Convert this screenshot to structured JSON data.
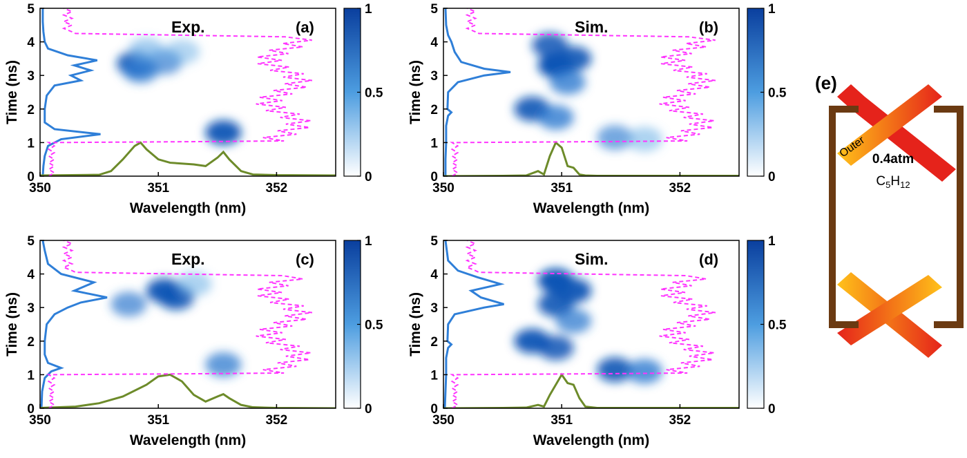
{
  "chart_data": [
    {
      "type": "heatmap",
      "panel_label": "(a)",
      "title": "Exp.",
      "xlabel": "Wavelength (nm)",
      "ylabel": "Time (ns)",
      "xlim": [
        350,
        352.5
      ],
      "ylim": [
        0,
        5
      ],
      "x_ticks": [
        "350",
        "351",
        "352"
      ],
      "y_ticks": [
        "0",
        "1",
        "2",
        "3",
        "4",
        "5"
      ],
      "colorbar": {
        "range": [
          0,
          1
        ],
        "ticks": [
          "0",
          "0.5",
          "1"
        ]
      },
      "blobs": [
        {
          "x": 350.8,
          "y": 3.35,
          "intensity": 0.8
        },
        {
          "x": 350.85,
          "y": 3.15,
          "intensity": 0.7
        },
        {
          "x": 351.05,
          "y": 3.4,
          "intensity": 0.6
        },
        {
          "x": 350.9,
          "y": 3.75,
          "intensity": 0.5
        },
        {
          "x": 351.2,
          "y": 3.7,
          "intensity": 0.4
        },
        {
          "x": 351.55,
          "y": 1.3,
          "intensity": 0.85
        }
      ],
      "series": [
        {
          "type": "temporal-profile",
          "style": "blue-solid",
          "y": [
            0,
            0.3,
            0.6,
            0.9,
            1.1,
            1.25,
            1.4,
            1.6,
            2.0,
            2.4,
            2.7,
            2.85,
            3.0,
            3.15,
            3.3,
            3.45,
            3.6,
            3.8,
            4.0,
            4.3,
            4.6,
            5.0
          ],
          "value": [
            0.02,
            0.03,
            0.05,
            0.1,
            0.3,
            0.9,
            0.2,
            0.05,
            0.05,
            0.08,
            0.2,
            0.6,
            0.45,
            0.75,
            0.5,
            0.85,
            0.4,
            0.1,
            0.05,
            0.03,
            0.02,
            0.02
          ]
        },
        {
          "type": "spectrum",
          "style": "green-solid",
          "x": [
            350,
            350.5,
            350.6,
            350.7,
            350.8,
            350.85,
            350.9,
            351.0,
            351.1,
            351.3,
            351.4,
            351.5,
            351.55,
            351.6,
            351.7,
            351.8,
            352.0,
            352.5
          ],
          "value": [
            0.02,
            0.04,
            0.15,
            0.5,
            0.9,
            1.0,
            0.8,
            0.5,
            0.4,
            0.35,
            0.3,
            0.55,
            0.72,
            0.5,
            0.15,
            0.05,
            0.03,
            0.02
          ]
        },
        {
          "type": "reference-pulse",
          "style": "magenta-dashed",
          "t_start": 1.0,
          "t_end": 4.2,
          "x_peak": 352.5,
          "x_base": 350.05
        }
      ]
    },
    {
      "type": "heatmap",
      "panel_label": "(b)",
      "title": "Sim.",
      "xlabel": "Wavelength (nm)",
      "ylabel": "Time (ns)",
      "xlim": [
        350,
        352.5
      ],
      "ylim": [
        0,
        5
      ],
      "x_ticks": [
        "350",
        "351",
        "352"
      ],
      "y_ticks": [
        "0",
        "1",
        "2",
        "3",
        "4",
        "5"
      ],
      "colorbar": {
        "range": [
          0,
          1
        ],
        "ticks": [
          "0",
          "0.5",
          "1"
        ]
      },
      "blobs": [
        {
          "x": 350.95,
          "y": 3.3,
          "intensity": 0.95
        },
        {
          "x": 351.1,
          "y": 3.5,
          "intensity": 0.8
        },
        {
          "x": 350.9,
          "y": 3.9,
          "intensity": 0.75
        },
        {
          "x": 351.05,
          "y": 2.8,
          "intensity": 0.7
        },
        {
          "x": 350.75,
          "y": 2.0,
          "intensity": 0.8
        },
        {
          "x": 350.95,
          "y": 1.75,
          "intensity": 0.7
        },
        {
          "x": 351.45,
          "y": 1.15,
          "intensity": 0.55
        },
        {
          "x": 351.7,
          "y": 1.1,
          "intensity": 0.45
        }
      ],
      "series": [
        {
          "type": "temporal-profile",
          "style": "blue-solid",
          "y": [
            0,
            0.5,
            1.0,
            1.5,
            1.8,
            1.9,
            2.0,
            2.5,
            2.8,
            3.0,
            3.1,
            3.2,
            3.4,
            3.7,
            4.0,
            4.2,
            4.5,
            5.0
          ],
          "value": [
            0.01,
            0.01,
            0.02,
            0.02,
            0.05,
            0.1,
            0.04,
            0.05,
            0.2,
            0.6,
            1.0,
            0.6,
            0.25,
            0.15,
            0.1,
            0.05,
            0.02,
            0.01
          ]
        },
        {
          "type": "spectrum",
          "style": "green-solid",
          "x": [
            350,
            350.5,
            350.7,
            350.8,
            350.85,
            350.9,
            350.95,
            351.0,
            351.05,
            351.1,
            351.15,
            351.2,
            351.3,
            352.5
          ],
          "value": [
            0.0,
            0.01,
            0.02,
            0.15,
            0.05,
            0.6,
            1.0,
            0.85,
            0.3,
            0.25,
            0.05,
            0.02,
            0.01,
            0.01
          ]
        },
        {
          "type": "reference-pulse",
          "style": "magenta-dashed",
          "t_start": 1.0,
          "t_end": 4.2,
          "x_peak": 352.5,
          "x_base": 350.05
        }
      ]
    },
    {
      "type": "heatmap",
      "panel_label": "(c)",
      "title": "Exp.",
      "xlabel": "Wavelength (nm)",
      "ylabel": "Time (ns)",
      "xlim": [
        350,
        352.5
      ],
      "ylim": [
        0,
        5
      ],
      "x_ticks": [
        "350",
        "351",
        "352"
      ],
      "y_ticks": [
        "0",
        "1",
        "2",
        "3",
        "4",
        "5"
      ],
      "colorbar": {
        "range": [
          0,
          1
        ],
        "ticks": [
          "0",
          "0.5",
          "1"
        ]
      },
      "blobs": [
        {
          "x": 351.05,
          "y": 3.5,
          "intensity": 0.85
        },
        {
          "x": 351.15,
          "y": 3.3,
          "intensity": 0.8
        },
        {
          "x": 350.75,
          "y": 3.1,
          "intensity": 0.6
        },
        {
          "x": 351.3,
          "y": 3.7,
          "intensity": 0.45
        },
        {
          "x": 351.55,
          "y": 1.3,
          "intensity": 0.65
        }
      ],
      "series": [
        {
          "type": "temporal-profile",
          "style": "blue-solid",
          "y": [
            0,
            0.5,
            0.9,
            1.1,
            1.2,
            1.35,
            1.6,
            2.0,
            2.5,
            2.8,
            3.0,
            3.15,
            3.3,
            3.5,
            3.75,
            4.0,
            4.3,
            4.7,
            5.0
          ],
          "value": [
            0.0,
            0.01,
            0.05,
            0.15,
            0.3,
            0.1,
            0.05,
            0.05,
            0.08,
            0.2,
            0.4,
            0.6,
            1.0,
            0.5,
            0.8,
            0.3,
            0.1,
            0.05,
            0.02
          ]
        },
        {
          "type": "spectrum",
          "style": "green-solid",
          "x": [
            350,
            350.3,
            350.5,
            350.7,
            350.9,
            351.0,
            351.1,
            351.2,
            351.3,
            351.4,
            351.5,
            351.55,
            351.6,
            351.7,
            351.8,
            352.0,
            352.5
          ],
          "value": [
            0.01,
            0.05,
            0.15,
            0.35,
            0.7,
            0.95,
            1.0,
            0.8,
            0.4,
            0.2,
            0.35,
            0.42,
            0.3,
            0.1,
            0.03,
            0.01,
            0.0
          ]
        },
        {
          "type": "reference-pulse",
          "style": "magenta-dashed",
          "t_start": 1.0,
          "t_end": 4.0,
          "x_peak": 352.5,
          "x_base": 350.05
        }
      ]
    },
    {
      "type": "heatmap",
      "panel_label": "(d)",
      "title": "Sim.",
      "xlabel": "Wavelength (nm)",
      "ylabel": "Time (ns)",
      "xlim": [
        350,
        352.5
      ],
      "ylim": [
        0,
        5
      ],
      "x_ticks": [
        "350",
        "351",
        "352"
      ],
      "y_ticks": [
        "0",
        "1",
        "2",
        "3",
        "4",
        "5"
      ],
      "colorbar": {
        "range": [
          0,
          1
        ],
        "ticks": [
          "0",
          "0.5",
          "1"
        ]
      },
      "blobs": [
        {
          "x": 350.95,
          "y": 3.8,
          "intensity": 0.95
        },
        {
          "x": 351.1,
          "y": 3.5,
          "intensity": 0.85
        },
        {
          "x": 350.95,
          "y": 3.1,
          "intensity": 0.8
        },
        {
          "x": 351.1,
          "y": 2.6,
          "intensity": 0.65
        },
        {
          "x": 350.75,
          "y": 2.0,
          "intensity": 0.85
        },
        {
          "x": 350.95,
          "y": 1.8,
          "intensity": 0.75
        },
        {
          "x": 351.45,
          "y": 1.15,
          "intensity": 0.8
        },
        {
          "x": 351.7,
          "y": 1.1,
          "intensity": 0.7
        }
      ],
      "series": [
        {
          "type": "temporal-profile",
          "style": "blue-solid",
          "y": [
            0,
            0.5,
            1.0,
            1.5,
            1.8,
            1.9,
            2.0,
            2.5,
            2.8,
            3.0,
            3.1,
            3.3,
            3.5,
            3.7,
            3.9,
            4.1,
            4.4,
            5.0
          ],
          "value": [
            0.0,
            0.01,
            0.02,
            0.02,
            0.05,
            0.1,
            0.04,
            0.05,
            0.15,
            0.6,
            0.9,
            0.55,
            0.4,
            0.85,
            0.5,
            0.2,
            0.05,
            0.01
          ]
        },
        {
          "type": "spectrum",
          "style": "green-solid",
          "x": [
            350,
            350.5,
            350.7,
            350.8,
            350.85,
            350.9,
            350.95,
            351.0,
            351.05,
            351.1,
            351.15,
            351.2,
            351.3,
            352.5
          ],
          "value": [
            0.0,
            0.01,
            0.02,
            0.1,
            0.05,
            0.4,
            0.7,
            1.0,
            0.75,
            0.7,
            0.3,
            0.05,
            0.01,
            0.01
          ]
        },
        {
          "type": "reference-pulse",
          "style": "magenta-dashed",
          "t_start": 1.0,
          "t_end": 4.0,
          "x_peak": 352.5,
          "x_base": 350.05
        }
      ]
    }
  ],
  "schematic": {
    "panel_label": "(e)",
    "beam_label": "Outer",
    "pressure_text": "0.4atm",
    "gas": {
      "base": "C",
      "sub1": "5",
      "mid": "H",
      "sub2": "12"
    },
    "colors": {
      "frame": "#6b3a12",
      "beam_hot": "#e5231b",
      "beam_mid": "#f47a17",
      "beam_cool": "#ffc21a"
    }
  },
  "colors": {
    "profile": "#2f7fd8",
    "spectrum": "#6d8b2a",
    "reference": "#ff33ff",
    "colormap_low": "#ffffff",
    "colormap_high": "#0a3f9e"
  }
}
